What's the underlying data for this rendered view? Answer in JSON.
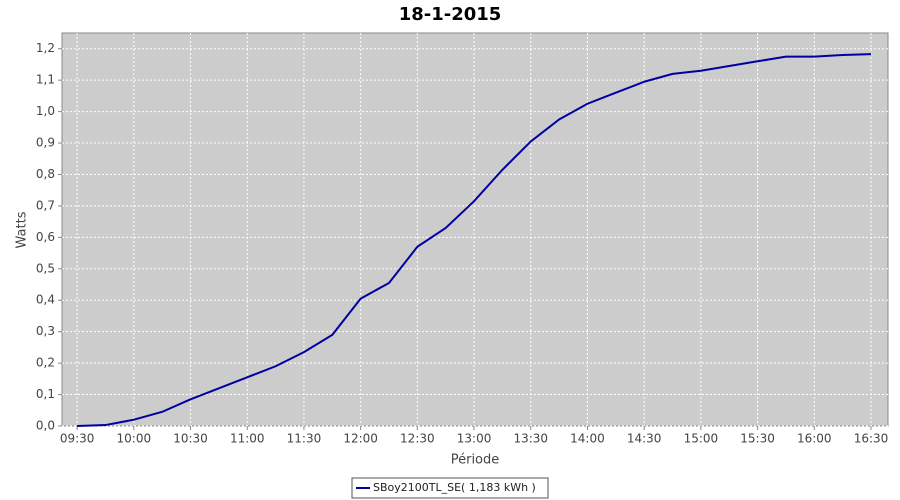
{
  "chart_data": {
    "type": "line",
    "title": "18-1-2015",
    "x_label": "Période",
    "y_label": "Watts",
    "x": [
      "09:30",
      "09:45",
      "10:00",
      "10:15",
      "10:30",
      "10:45",
      "11:00",
      "11:15",
      "11:30",
      "11:45",
      "12:00",
      "12:15",
      "12:30",
      "12:45",
      "13:00",
      "13:15",
      "13:30",
      "13:45",
      "14:00",
      "14:15",
      "14:30",
      "14:45",
      "15:00",
      "15:15",
      "15:30",
      "15:45",
      "16:00",
      "16:15",
      "16:30"
    ],
    "series": [
      {
        "name": "SBoy2100TL_SE( 1,183 kWh )",
        "color": "#0000a0",
        "values": [
          0.0,
          0.003,
          0.02,
          0.045,
          0.085,
          0.12,
          0.155,
          0.19,
          0.235,
          0.29,
          0.405,
          0.455,
          0.57,
          0.63,
          0.715,
          0.815,
          0.905,
          0.975,
          1.025,
          1.06,
          1.095,
          1.12,
          1.13,
          1.145,
          1.16,
          1.175,
          1.175,
          1.18,
          1.183
        ]
      }
    ],
    "xlim": [
      "09:22",
      "16:39"
    ],
    "xticks": [
      "09:30",
      "10:00",
      "10:30",
      "11:00",
      "11:30",
      "12:00",
      "12:30",
      "13:00",
      "13:30",
      "14:00",
      "14:30",
      "15:00",
      "15:30",
      "16:00",
      "16:30"
    ],
    "ylim": [
      0,
      1.25
    ],
    "yticks": [
      {
        "value": 0,
        "label": "0,0"
      },
      {
        "value": 0.1,
        "label": "0,1"
      },
      {
        "value": 0.2,
        "label": "0,2"
      },
      {
        "value": 0.3,
        "label": "0,3"
      },
      {
        "value": 0.4,
        "label": "0,4"
      },
      {
        "value": 0.5,
        "label": "0,5"
      },
      {
        "value": 0.6,
        "label": "0,6"
      },
      {
        "value": 0.7,
        "label": "0,7"
      },
      {
        "value": 0.8,
        "label": "0,8"
      },
      {
        "value": 0.9,
        "label": "0,9"
      },
      {
        "value": 1.0,
        "label": "1,0"
      },
      {
        "value": 1.1,
        "label": "1,1"
      },
      {
        "value": 1.2,
        "label": "1,2"
      }
    ],
    "grid": true,
    "legend": "bottom"
  }
}
